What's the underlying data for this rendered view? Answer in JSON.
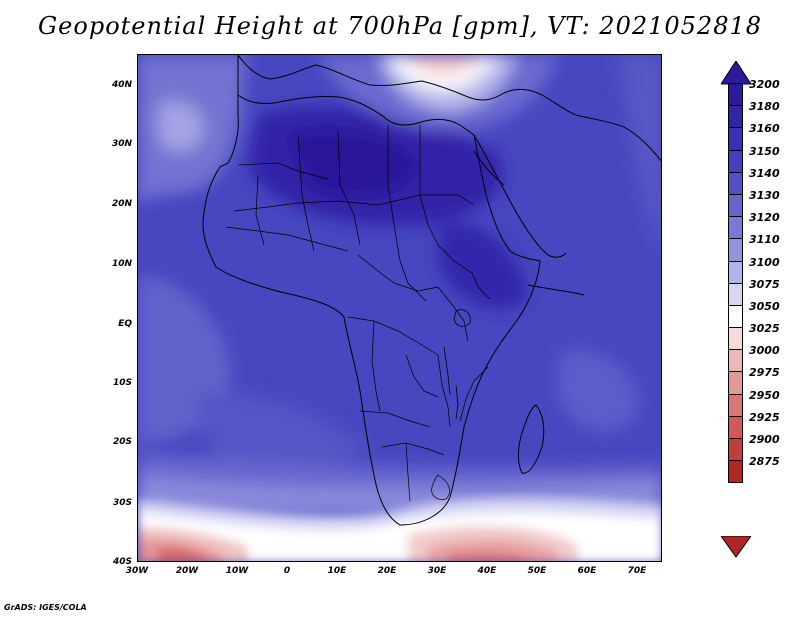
{
  "title": "Geopotential Height at 700hPa [gpm], VT: 2021052818",
  "credit": "GrADS: IGES/COLA",
  "lat_labels": [
    "40N",
    "30N",
    "20N",
    "10N",
    "EQ",
    "10S",
    "20S",
    "30S",
    "40S"
  ],
  "lon_labels": [
    "30W",
    "20W",
    "10W",
    "0",
    "10E",
    "20E",
    "30E",
    "40E",
    "50E",
    "60E",
    "70E"
  ],
  "colorbar": {
    "levels": [
      "3200",
      "3180",
      "3160",
      "3150",
      "3140",
      "3130",
      "3120",
      "3110",
      "3100",
      "3075",
      "3050",
      "3025",
      "3000",
      "2975",
      "2950",
      "2925",
      "2900",
      "2875"
    ],
    "colors": [
      "#2b1b9c",
      "#3124a8",
      "#3a30b4",
      "#4540be",
      "#5151c6",
      "#6464ce",
      "#7a7ad6",
      "#9393df",
      "#b2b2ea",
      "#d6d6f4",
      "#ffffff",
      "#f7d9d9",
      "#efb8b8",
      "#e59898",
      "#da7878",
      "#cf5a5a",
      "#c33d3d",
      "#b02525"
    ]
  }
}
